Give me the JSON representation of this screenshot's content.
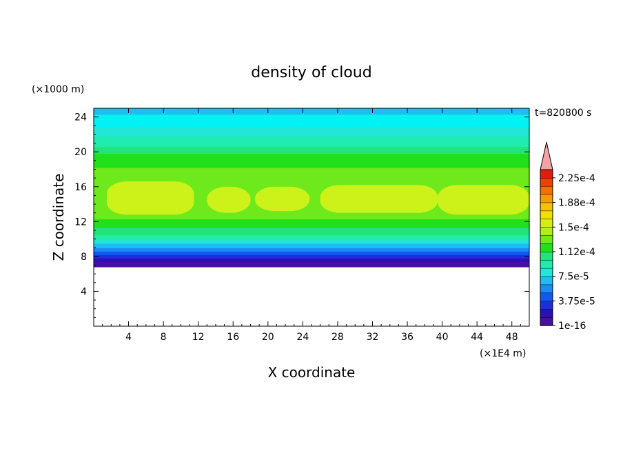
{
  "chart_data": {
    "type": "heatmap",
    "title": "density of cloud",
    "xlabel": "X coordinate",
    "ylabel": "Z coordinate",
    "x_unit": "(×1E4 m)",
    "y_unit": "(×1000 m)",
    "time_label": "t=820800 s",
    "xlim": [
      0,
      50
    ],
    "ylim": [
      0,
      25
    ],
    "x_ticks": [
      "4",
      "8",
      "12",
      "16",
      "20",
      "24",
      "28",
      "32",
      "36",
      "40",
      "44",
      "48"
    ],
    "y_ticks": [
      "4",
      "8",
      "12",
      "16",
      "20",
      "24"
    ],
    "colorbar": {
      "labels": [
        "1e-16",
        "3.75e-5",
        "7.5e-5",
        "1.12e-4",
        "1.5e-4",
        "1.88e-4",
        "2.25e-4"
      ],
      "colors": [
        "#4b0fa0",
        "#2a10b8",
        "#1d2fd8",
        "#1458f0",
        "#1a8cf5",
        "#1fbef0",
        "#22e6d8",
        "#20ecb0",
        "#25e37c",
        "#22e018",
        "#6eea1c",
        "#b2ee18",
        "#d7ec10",
        "#f0e000",
        "#f5c000",
        "#f59a00",
        "#f07000",
        "#ea4400",
        "#e21d10"
      ],
      "extend_color": "#f3a3a3"
    },
    "bands": [
      {
        "z_min": 6.8,
        "z_max": 7.4,
        "color": "#4b0fa0"
      },
      {
        "z_min": 7.4,
        "z_max": 7.8,
        "color": "#2a10b8"
      },
      {
        "z_min": 7.8,
        "z_max": 8.2,
        "color": "#1d2fd8"
      },
      {
        "z_min": 8.2,
        "z_max": 8.6,
        "color": "#1458f0"
      },
      {
        "z_min": 8.6,
        "z_max": 9.0,
        "color": "#1a8cf5"
      },
      {
        "z_min": 9.0,
        "z_max": 9.5,
        "color": "#1fbef0"
      },
      {
        "z_min": 9.5,
        "z_max": 10.0,
        "color": "#22e6d8"
      },
      {
        "z_min": 10.0,
        "z_max": 10.5,
        "color": "#20ecb0"
      },
      {
        "z_min": 10.5,
        "z_max": 11.3,
        "color": "#25e37c"
      },
      {
        "z_min": 11.3,
        "z_max": 12.3,
        "color": "#22e018"
      },
      {
        "z_min": 12.3,
        "z_max": 18.2,
        "color": "#6eea1c"
      },
      {
        "z_min": 18.2,
        "z_max": 19.8,
        "color": "#22e018"
      },
      {
        "z_min": 19.8,
        "z_max": 20.6,
        "color": "#25e37c"
      },
      {
        "z_min": 20.6,
        "z_max": 21.8,
        "color": "#20ecb0"
      },
      {
        "z_min": 21.8,
        "z_max": 22.8,
        "color": "#22e6d8"
      },
      {
        "z_min": 22.8,
        "z_max": 24.3,
        "color": "#00f2f2"
      },
      {
        "z_min": 24.3,
        "z_max": 25.0,
        "color": "#1fbef0"
      }
    ],
    "cores": [
      {
        "x_min": 1.5,
        "x_max": 11.5,
        "z_min": 12.8,
        "z_max": 16.6,
        "color": "#cdf21a"
      },
      {
        "x_min": 13.0,
        "x_max": 18.0,
        "z_min": 13.0,
        "z_max": 16.0,
        "color": "#cdf21a"
      },
      {
        "x_min": 18.5,
        "x_max": 24.8,
        "z_min": 13.2,
        "z_max": 16.0,
        "color": "#cdf21a"
      },
      {
        "x_min": 26.0,
        "x_max": 39.5,
        "z_min": 13.0,
        "z_max": 16.2,
        "color": "#cdf21a"
      },
      {
        "x_min": 39.5,
        "x_max": 50.0,
        "z_min": 12.8,
        "z_max": 16.2,
        "color": "#cdf21a"
      }
    ]
  }
}
